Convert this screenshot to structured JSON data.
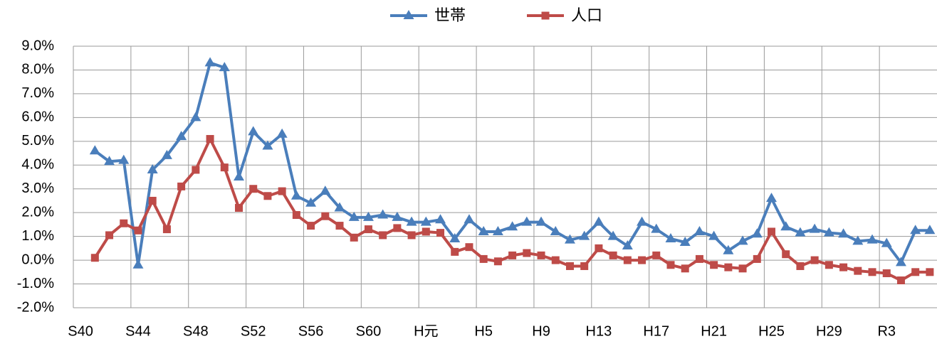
{
  "chart_data": {
    "type": "line",
    "categories": [
      "S40",
      null,
      null,
      null,
      "S44",
      null,
      null,
      null,
      "S48",
      null,
      null,
      null,
      "S52",
      null,
      null,
      null,
      "S56",
      null,
      null,
      null,
      "S60",
      null,
      null,
      null,
      "H元",
      null,
      null,
      null,
      "H5",
      null,
      null,
      null,
      "H9",
      null,
      null,
      null,
      "H13",
      null,
      null,
      null,
      "H17",
      null,
      null,
      null,
      "H21",
      null,
      null,
      null,
      "H25",
      null,
      null,
      null,
      "H29",
      null,
      null,
      null,
      "R3",
      null,
      null,
      null
    ],
    "series": [
      {
        "name": "世帯",
        "color": "#4a7ebb",
        "marker": "triangle",
        "values": [
          null,
          4.6,
          4.15,
          4.2,
          -0.2,
          3.8,
          4.4,
          5.2,
          6.0,
          8.3,
          8.1,
          3.5,
          5.4,
          4.8,
          5.3,
          2.7,
          2.4,
          2.9,
          2.2,
          1.8,
          1.8,
          1.9,
          1.8,
          1.6,
          1.6,
          1.7,
          0.9,
          1.7,
          1.2,
          1.2,
          1.4,
          1.6,
          1.6,
          1.2,
          0.85,
          1.0,
          1.6,
          1.0,
          0.6,
          1.6,
          1.3,
          0.9,
          0.75,
          1.2,
          1.0,
          0.4,
          0.8,
          1.1,
          2.6,
          1.4,
          1.15,
          1.3,
          1.15,
          1.1,
          0.8,
          0.85,
          0.7,
          -0.1,
          1.25,
          1.25
        ]
      },
      {
        "name": "人口",
        "color": "#be4b48",
        "marker": "square",
        "values": [
          null,
          0.1,
          1.05,
          1.55,
          1.25,
          2.5,
          1.3,
          3.1,
          3.8,
          5.1,
          3.9,
          2.2,
          3.0,
          2.7,
          2.9,
          1.9,
          1.45,
          1.85,
          1.45,
          0.95,
          1.3,
          1.05,
          1.35,
          1.05,
          1.2,
          1.15,
          0.35,
          0.55,
          0.05,
          -0.05,
          0.2,
          0.3,
          0.2,
          0.0,
          -0.25,
          -0.25,
          0.5,
          0.2,
          0.0,
          0.0,
          0.2,
          -0.2,
          -0.35,
          0.05,
          -0.2,
          -0.3,
          -0.35,
          0.05,
          1.2,
          0.25,
          -0.25,
          0.0,
          -0.2,
          -0.3,
          -0.45,
          -0.5,
          -0.55,
          -0.85,
          -0.5,
          -0.5
        ]
      }
    ],
    "ylim": [
      -2,
      9
    ],
    "yticks": [
      {
        "value": -2,
        "label": "-2.0%"
      },
      {
        "value": -1,
        "label": "-1.0%"
      },
      {
        "value": 0,
        "label": "0.0%"
      },
      {
        "value": 1,
        "label": "1.0%"
      },
      {
        "value": 2,
        "label": "2.0%"
      },
      {
        "value": 3,
        "label": "3.0%"
      },
      {
        "value": 4,
        "label": "4.0%"
      },
      {
        "value": 5,
        "label": "5.0%"
      },
      {
        "value": 6,
        "label": "6.0%"
      },
      {
        "value": 7,
        "label": "7.0%"
      },
      {
        "value": 8,
        "label": "8.0%"
      },
      {
        "value": 9,
        "label": "9.0%"
      }
    ],
    "grid": true,
    "legend": "top"
  }
}
